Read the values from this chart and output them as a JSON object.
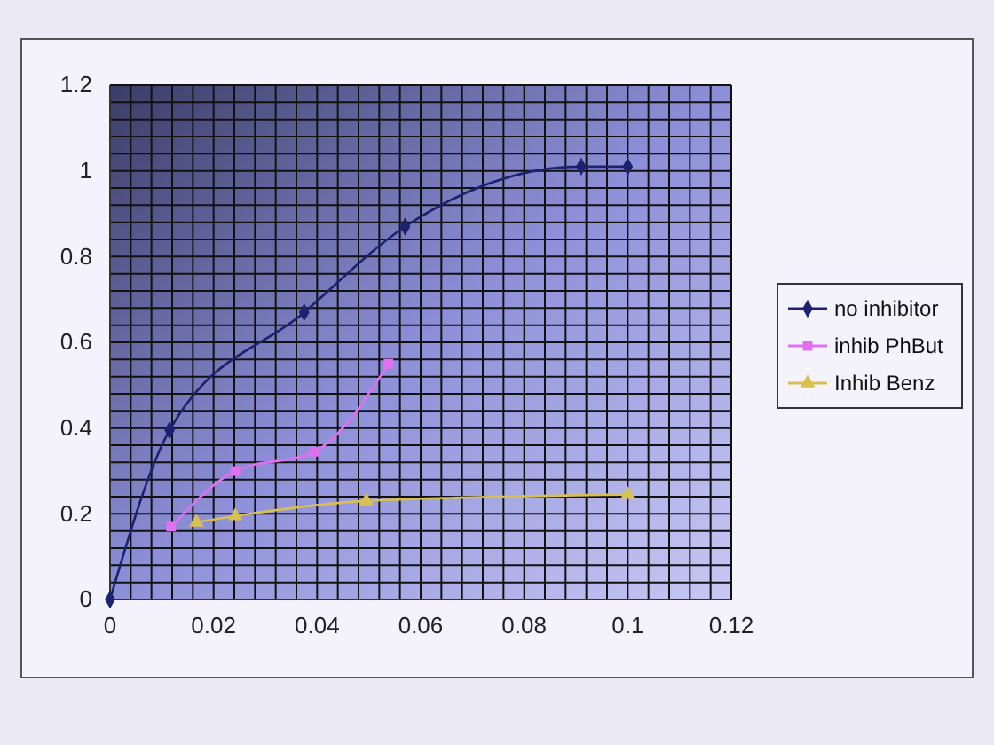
{
  "chart_data": {
    "type": "line",
    "xlim": [
      0,
      0.12
    ],
    "ylim": [
      0,
      1.2
    ],
    "xticks": [
      0,
      {
        "value": 0.004,
        "label": null
      },
      {
        "value": 0.008,
        "label": null
      },
      {
        "value": 0.012,
        "label": null
      },
      {
        "value": 0.016,
        "label": null
      },
      0.02,
      {
        "value": 0.024,
        "label": null
      },
      {
        "value": 0.028,
        "label": null
      },
      {
        "value": 0.032,
        "label": null
      },
      {
        "value": 0.036,
        "label": null
      },
      0.04,
      {
        "value": 0.044,
        "label": null
      },
      {
        "value": 0.048,
        "label": null
      },
      {
        "value": 0.052,
        "label": null
      },
      {
        "value": 0.056,
        "label": null
      },
      0.06,
      {
        "value": 0.064,
        "label": null
      },
      {
        "value": 0.068,
        "label": null
      },
      {
        "value": 0.072,
        "label": null
      },
      {
        "value": 0.076,
        "label": null
      },
      0.08,
      {
        "value": 0.084,
        "label": null
      },
      {
        "value": 0.088,
        "label": null
      },
      {
        "value": 0.092,
        "label": null
      },
      {
        "value": 0.096,
        "label": null
      },
      0.1,
      {
        "value": 0.104,
        "label": null
      },
      {
        "value": 0.108,
        "label": null
      },
      {
        "value": 0.112,
        "label": null
      },
      {
        "value": 0.116,
        "label": null
      },
      0.12
    ],
    "yticks": [
      0,
      {
        "value": 0.04,
        "label": null
      },
      {
        "value": 0.08,
        "label": null
      },
      {
        "value": 0.12,
        "label": null
      },
      {
        "value": 0.16,
        "label": null
      },
      0.2,
      {
        "value": 0.24,
        "label": null
      },
      {
        "value": 0.28,
        "label": null
      },
      {
        "value": 0.32,
        "label": null
      },
      {
        "value": 0.36,
        "label": null
      },
      0.4,
      {
        "value": 0.44,
        "label": null
      },
      {
        "value": 0.48,
        "label": null
      },
      {
        "value": 0.52,
        "label": null
      },
      {
        "value": 0.56,
        "label": null
      },
      0.6,
      {
        "value": 0.64,
        "label": null
      },
      {
        "value": 0.68,
        "label": null
      },
      {
        "value": 0.72,
        "label": null
      },
      {
        "value": 0.76,
        "label": null
      },
      0.8,
      {
        "value": 0.84,
        "label": null
      },
      {
        "value": 0.88,
        "label": null
      },
      {
        "value": 0.92,
        "label": null
      },
      {
        "value": 0.96,
        "label": null
      },
      1,
      {
        "value": 1.04,
        "label": null
      },
      {
        "value": 1.08,
        "label": null
      },
      {
        "value": 1.12,
        "label": null
      },
      {
        "value": 1.16,
        "label": null
      },
      1.2
    ],
    "grid": true,
    "legend": "right",
    "line_style": "solid",
    "series": [
      {
        "name": "no inhibitor",
        "color": "#1c2270",
        "marker": "diamond",
        "x": [
          0,
          0.0115,
          0.0375,
          0.057,
          0.091,
          0.1
        ],
        "values": [
          0,
          0.395,
          0.67,
          0.87,
          1.01,
          1.01
        ]
      },
      {
        "name": "inhib PhBut",
        "color": "#e070f0",
        "marker": "square",
        "x": [
          0.0118,
          0.0242,
          0.0395,
          0.0538
        ],
        "values": [
          0.17,
          0.3,
          0.345,
          0.55
        ]
      },
      {
        "name": "Inhib Benz",
        "color": "#d8c050",
        "marker": "triangle",
        "x": [
          0.0167,
          0.0242,
          0.0495,
          0.1
        ],
        "values": [
          0.18,
          0.195,
          0.23,
          0.245
        ]
      }
    ]
  }
}
